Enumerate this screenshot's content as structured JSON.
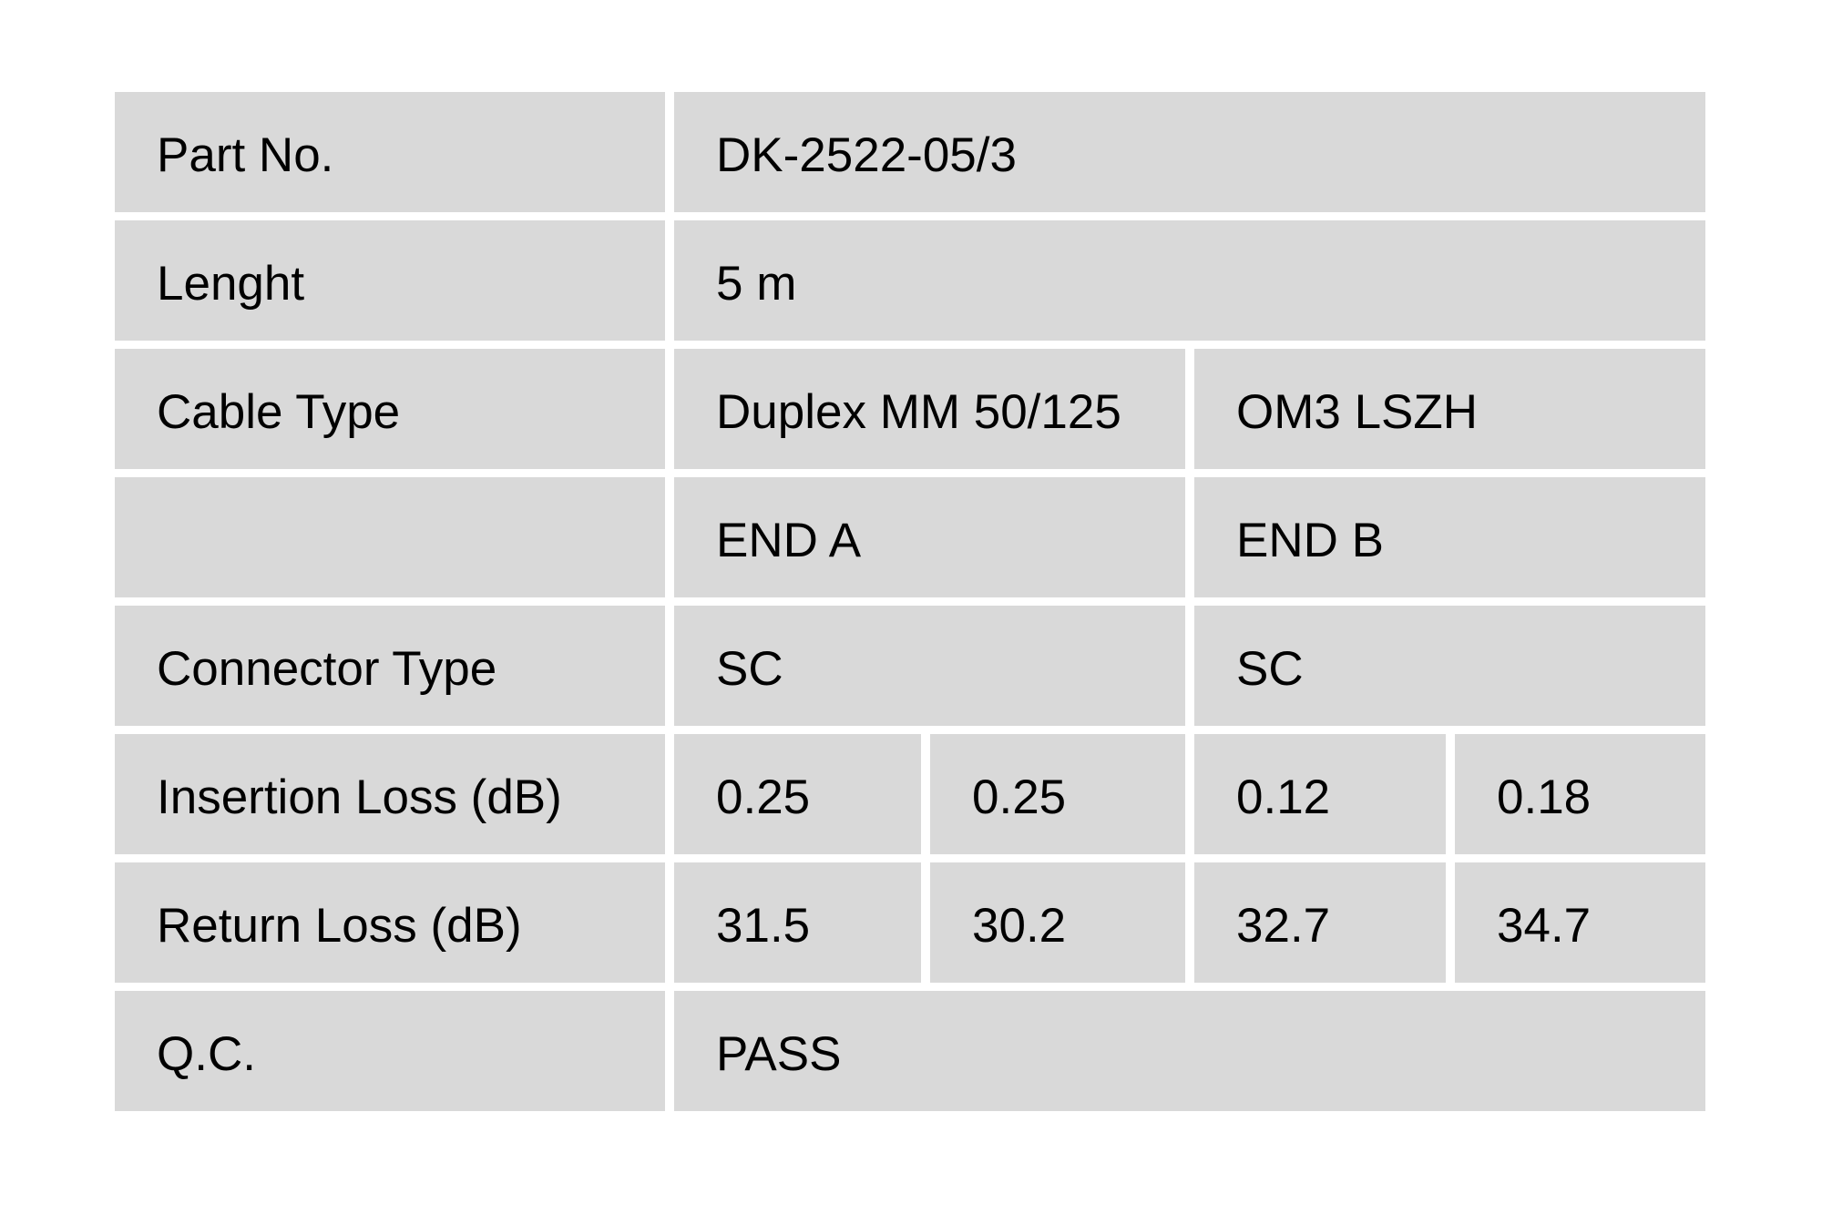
{
  "table": {
    "colors": {
      "cell_background": "#d9d9d9",
      "page_background": "#ffffff",
      "text": "#000000"
    },
    "rows": [
      {
        "label": "Part No.",
        "values": [
          "DK-2522-05/3"
        ]
      },
      {
        "label": "Lenght",
        "values": [
          "5 m"
        ]
      },
      {
        "label": "Cable Type",
        "values": [
          "Duplex MM 50/125",
          "OM3 LSZH"
        ]
      },
      {
        "label": "",
        "values": [
          "END A",
          "END B"
        ]
      },
      {
        "label": "Connector Type",
        "values": [
          "SC",
          "SC"
        ]
      },
      {
        "label": "Insertion Loss (dB)",
        "values": [
          "0.25",
          "0.25",
          "0.12",
          "0.18"
        ]
      },
      {
        "label": "Return Loss (dB)",
        "values": [
          "31.5",
          "30.2",
          "32.7",
          "34.7"
        ]
      },
      {
        "label": "Q.C.",
        "values": [
          "PASS"
        ]
      }
    ]
  }
}
